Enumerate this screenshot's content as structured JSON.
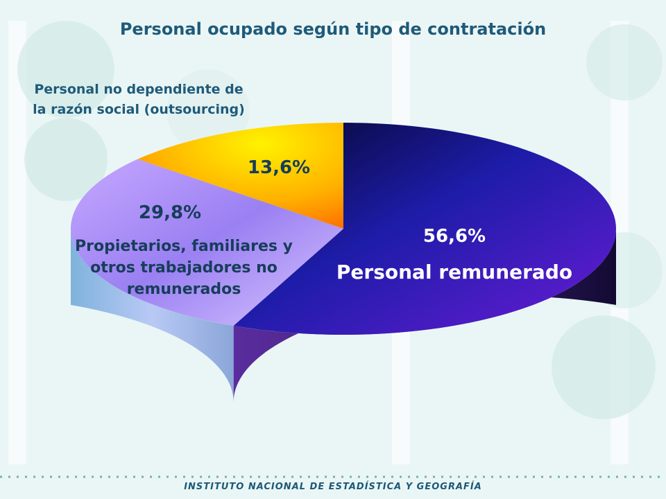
{
  "title": "Personal ocupado según tipo de contratación",
  "footer": "INSTITUTO NACIONAL DE ESTADÍSTICA Y GEOGRAFÍA",
  "chart_data": {
    "type": "pie",
    "title": "Personal ocupado según tipo de contratación",
    "unit": "%",
    "slices": [
      {
        "label": "Personal remunerado",
        "value": 56.6,
        "display": "56,6%",
        "color": "#3a1fd6"
      },
      {
        "label": "Propietarios, familiares y otros trabajadores no remunerados",
        "value": 29.8,
        "display": "29,8%",
        "color": "#a98cf5"
      },
      {
        "label": "Personal no dependiente de la razón social (outsourcing)",
        "value": 13.6,
        "display": "13,6%",
        "color": "#ffb000"
      }
    ]
  },
  "colors": {
    "title": "#1f5a7a",
    "background": "#e9f6f5"
  }
}
